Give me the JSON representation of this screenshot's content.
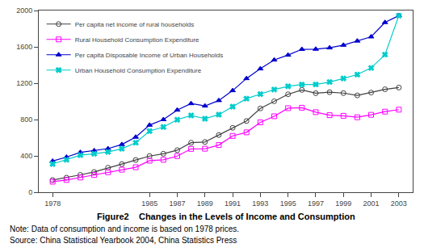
{
  "chart_data": {
    "type": "line",
    "title": "Figure2    Changes in the Levels of Income and Consumption",
    "annotations": [
      "Note: Data of consumption and income is based on 1978 prices.",
      "Source: China Statistical Yearbook 2004, China Statistics Press"
    ],
    "x": [
      1978,
      1979,
      1980,
      1981,
      1982,
      1983,
      1984,
      1985,
      1986,
      1987,
      1988,
      1989,
      1990,
      1991,
      1992,
      1993,
      1994,
      1995,
      1996,
      1997,
      1998,
      1999,
      2000,
      2001,
      2002,
      2003
    ],
    "series": [
      {
        "name": "Per capita net income of rural households",
        "color": "#404040",
        "marker": "circle-open",
        "values": [
          134,
          160,
          191,
          223,
          270,
          310,
          355,
          398,
          424,
          463,
          545,
          553,
          630,
          709,
          784,
          922,
          1001,
          1078,
          1126,
          1090,
          1101,
          1091,
          1066,
          1097,
          1133,
          1152
        ]
      },
      {
        "name": "Rural Household Consumption Expenditure",
        "color": "#ff00ff",
        "marker": "square-open",
        "values": [
          116,
          135,
          162,
          190,
          220,
          248,
          275,
          347,
          357,
          398,
          477,
          479,
          519,
          620,
          659,
          769,
          836,
          925,
          930,
          881,
          848,
          841,
          825,
          852,
          887,
          909
        ]
      },
      {
        "name": "Per capita Disposable Income of Urban Households",
        "color": "#0000cc",
        "marker": "triangle-up",
        "values": [
          343,
          387,
          439,
          458,
          480,
          526,
          607,
          739,
          800,
          905,
          976,
          950,
          1010,
          1119,
          1252,
          1359,
          1456,
          1510,
          1573,
          1575,
          1590,
          1619,
          1665,
          1711,
          1869,
          1943
        ]
      },
      {
        "name": "Urban Household Consumption Expenditure",
        "color": "#00cccc",
        "marker": "x",
        "values": [
          311,
          357,
          408,
          423,
          443,
          479,
          545,
          673,
          718,
          798,
          845,
          809,
          854,
          942,
          1030,
          1080,
          1130,
          1166,
          1185,
          1186,
          1213,
          1252,
          1295,
          1368,
          1514,
          1943
        ]
      }
    ],
    "xlim": [
      1977,
      2004
    ],
    "xticks": [
      1978,
      1985,
      1987,
      1989,
      1991,
      1993,
      1995,
      1997,
      1999,
      2001,
      2003
    ],
    "ylim": [
      0,
      2000
    ],
    "yticks": [
      0,
      400,
      800,
      1200,
      1600,
      2000
    ],
    "grid": false,
    "legend": "upper left"
  }
}
